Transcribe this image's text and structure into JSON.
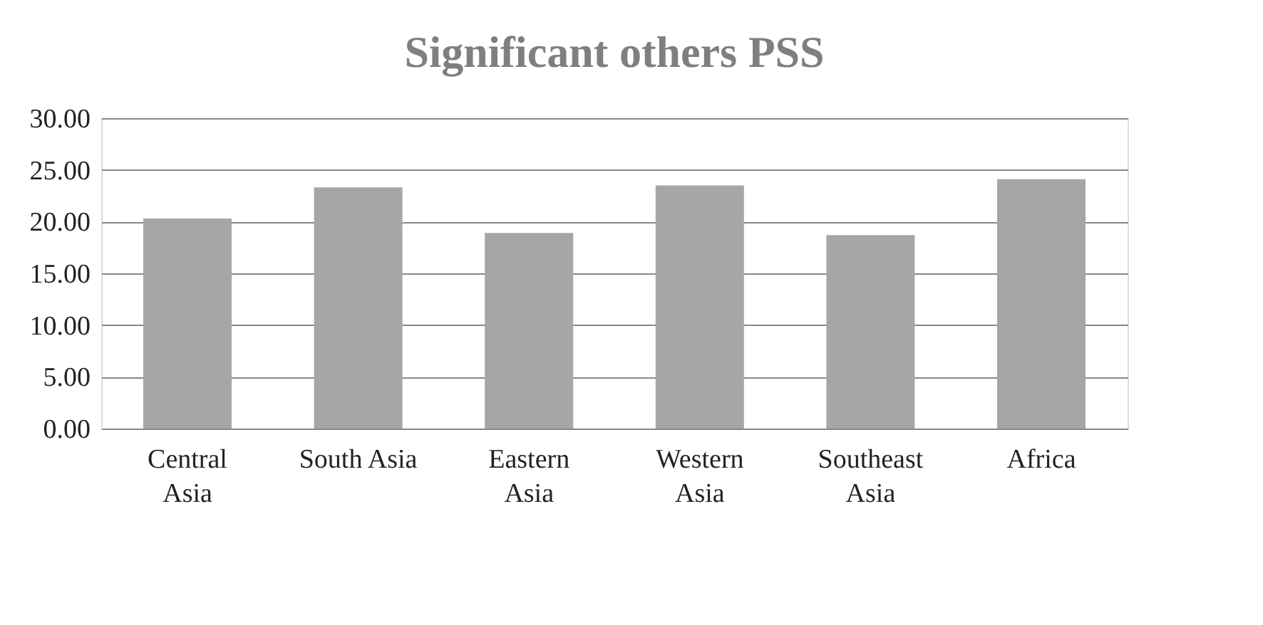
{
  "chart_data": {
    "type": "bar",
    "title": "Significant others PSS",
    "categories": [
      "Central Asia",
      "South Asia",
      "Eastern Asia",
      "Western Asia",
      "Southeast Asia",
      "Africa"
    ],
    "values": [
      20.3,
      23.3,
      18.9,
      23.5,
      18.7,
      24.1
    ],
    "color": "#a6a6a6",
    "ylim": [
      0,
      30
    ],
    "yticks": [
      {
        "value": 0,
        "label": "0.00"
      },
      {
        "value": 5,
        "label": "5.00"
      },
      {
        "value": 10,
        "label": "10.00"
      },
      {
        "value": 15,
        "label": "15.00"
      },
      {
        "value": 20,
        "label": "20.00"
      },
      {
        "value": 25,
        "label": "25.00"
      },
      {
        "value": 30,
        "label": "30.00"
      }
    ],
    "grid": "y"
  }
}
